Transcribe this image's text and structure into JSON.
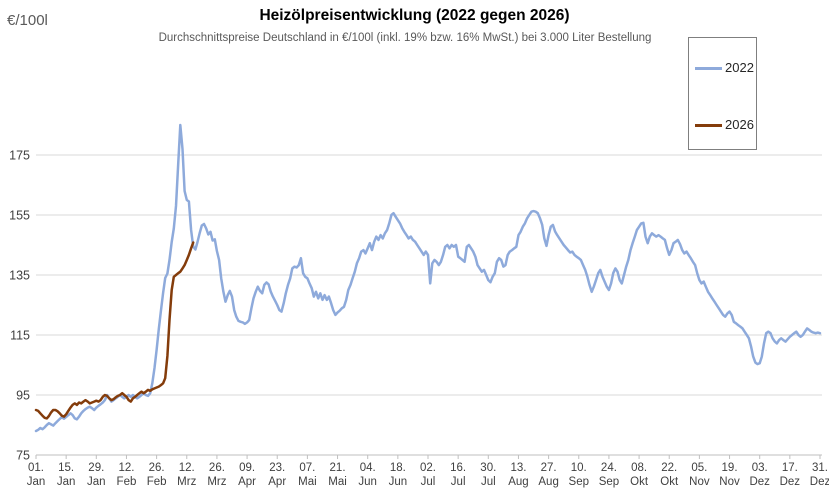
{
  "colors": {
    "grid": "#D9D9D9",
    "axis": "#BFBFBF",
    "tick_label": "#404040",
    "subtitle_text": "#595959",
    "legend_border": "#7F7F7F",
    "series_2022": "#8EAADB",
    "series_2026": "#843C0B"
  },
  "legend": {
    "items": [
      {
        "label": "2022",
        "color": "#8EAADB"
      },
      {
        "label": "2026",
        "color": "#843C0B"
      }
    ]
  },
  "chart_data": {
    "type": "line",
    "title": "Heizölpreisentwicklung (2022 gegen 2026)",
    "subtitle": "Durchschnittspreise Deutschland in €/100l (inkl. 19% bzw. 16% MwSt.) bei 3.000 Liter Bestellung",
    "y_axis_unit": "€/100l",
    "ylim": [
      75,
      190
    ],
    "y_ticks": [
      75,
      95,
      115,
      135,
      155,
      175
    ],
    "grid": "horizontal-only",
    "legend_position": "right-top-box",
    "x_total_days": 365,
    "tick_interval_days": 14,
    "x_tick_labels": [
      [
        "01.",
        "Jan"
      ],
      [
        "15.",
        "Jan"
      ],
      [
        "29.",
        "Jan"
      ],
      [
        "12.",
        "Feb"
      ],
      [
        "26.",
        "Feb"
      ],
      [
        "12.",
        "Mrz"
      ],
      [
        "26.",
        "Mrz"
      ],
      [
        "09.",
        "Apr"
      ],
      [
        "23.",
        "Apr"
      ],
      [
        "07.",
        "Mai"
      ],
      [
        "21.",
        "Mai"
      ],
      [
        "04.",
        "Jun"
      ],
      [
        "18.",
        "Jun"
      ],
      [
        "02.",
        "Jul"
      ],
      [
        "16.",
        "Jul"
      ],
      [
        "30.",
        "Jul"
      ],
      [
        "13.",
        "Aug"
      ],
      [
        "27.",
        "Aug"
      ],
      [
        "10.",
        "Sep"
      ],
      [
        "24.",
        "Sep"
      ],
      [
        "08.",
        "Okt"
      ],
      [
        "22.",
        "Okt"
      ],
      [
        "05.",
        "Nov"
      ],
      [
        "19.",
        "Nov"
      ],
      [
        "03.",
        "Dez"
      ],
      [
        "17.",
        "Dez"
      ],
      [
        "31.",
        "Dez"
      ]
    ],
    "series": [
      {
        "name": "2022",
        "color": "#8EAADB",
        "start_day": 0,
        "values": [
          83.0,
          83.4,
          84.0,
          83.6,
          84.2,
          85.0,
          85.6,
          85.2,
          84.8,
          85.6,
          86.3,
          87.0,
          87.6,
          87.1,
          87.7,
          88.3,
          88.9,
          88.3,
          87.2,
          86.9,
          87.8,
          88.9,
          89.7,
          90.3,
          90.8,
          91.1,
          90.6,
          90.0,
          90.8,
          91.4,
          91.9,
          92.5,
          93.3,
          95.0,
          93.9,
          92.8,
          93.3,
          93.9,
          94.4,
          95.0,
          94.4,
          93.9,
          94.4,
          95.0,
          94.4,
          95.0,
          94.4,
          93.9,
          94.4,
          95.0,
          95.6,
          95.0,
          94.7,
          95.6,
          98.9,
          104.0,
          110.0,
          117.0,
          123.0,
          129.0,
          134.0,
          135.5,
          140.0,
          146.0,
          150.5,
          158.0,
          172.0,
          185.0,
          177.0,
          163.0,
          160.0,
          159.5,
          150.0,
          144.5,
          143.5,
          146.0,
          149.0,
          151.5,
          152.0,
          150.5,
          148.5,
          149.4,
          146.5,
          146.9,
          143.0,
          140.0,
          133.9,
          129.4,
          126.1,
          128.3,
          129.7,
          127.8,
          123.3,
          121.1,
          119.7,
          119.4,
          119.2,
          118.7,
          119.2,
          120.0,
          123.9,
          127.2,
          129.4,
          131.1,
          129.7,
          128.9,
          131.7,
          132.5,
          131.9,
          129.4,
          127.8,
          126.4,
          125.0,
          123.3,
          122.8,
          125.6,
          128.9,
          131.7,
          133.9,
          137.2,
          137.8,
          137.5,
          138.3,
          140.6,
          135.6,
          134.4,
          133.9,
          132.2,
          130.6,
          127.8,
          129.4,
          127.2,
          128.9,
          126.7,
          128.3,
          126.7,
          127.8,
          125.6,
          123.3,
          121.7,
          122.5,
          123.1,
          123.9,
          124.4,
          126.7,
          130.0,
          131.7,
          133.9,
          136.1,
          138.9,
          140.6,
          142.8,
          143.3,
          142.2,
          143.9,
          145.6,
          143.3,
          146.1,
          147.8,
          146.7,
          148.3,
          147.2,
          148.9,
          150.0,
          152.2,
          155.0,
          155.6,
          154.4,
          153.3,
          152.2,
          150.6,
          149.4,
          148.3,
          147.2,
          147.8,
          146.7,
          146.1,
          145.0,
          143.9,
          142.8,
          141.7,
          142.8,
          141.7,
          132.2,
          138.9,
          140.0,
          139.4,
          138.3,
          139.4,
          141.7,
          144.4,
          145.0,
          143.9,
          145.0,
          144.4,
          145.0,
          141.1,
          140.6,
          140.0,
          139.4,
          144.4,
          145.0,
          143.9,
          142.8,
          141.1,
          138.3,
          137.2,
          136.1,
          136.7,
          135.0,
          133.3,
          132.6,
          134.4,
          135.6,
          139.4,
          140.6,
          140.0,
          137.8,
          138.3,
          141.7,
          142.8,
          143.3,
          143.9,
          144.4,
          148.3,
          149.4,
          151.1,
          152.2,
          153.9,
          155.0,
          156.1,
          156.3,
          156.1,
          155.6,
          153.9,
          151.7,
          147.2,
          144.7,
          148.3,
          151.1,
          151.7,
          149.5,
          148.3,
          147.2,
          146.1,
          145.0,
          144.2,
          143.3,
          142.5,
          142.8,
          141.7,
          141.1,
          140.6,
          140.0,
          138.3,
          136.7,
          134.4,
          131.7,
          129.4,
          131.1,
          133.3,
          135.6,
          136.7,
          134.4,
          132.8,
          131.1,
          130.0,
          132.2,
          135.6,
          137.2,
          136.1,
          133.3,
          132.2,
          135.0,
          137.8,
          140.0,
          143.3,
          145.6,
          147.8,
          150.0,
          151.1,
          152.2,
          152.4,
          147.8,
          145.6,
          147.8,
          148.9,
          148.3,
          147.8,
          148.3,
          147.8,
          147.2,
          146.7,
          143.9,
          141.7,
          143.3,
          145.6,
          146.1,
          146.7,
          145.3,
          143.3,
          142.2,
          142.8,
          141.7,
          140.6,
          139.4,
          138.3,
          135.6,
          133.3,
          132.2,
          132.8,
          131.1,
          129.4,
          128.3,
          127.2,
          126.1,
          125.0,
          123.9,
          122.8,
          121.7,
          121.1,
          122.2,
          122.8,
          121.7,
          119.4,
          118.9,
          118.3,
          117.8,
          117.2,
          116.1,
          115.0,
          113.9,
          111.1,
          107.8,
          105.8,
          105.3,
          105.6,
          107.8,
          112.2,
          115.6,
          116.1,
          115.6,
          113.9,
          112.8,
          112.2,
          113.3,
          113.9,
          113.3,
          112.8,
          113.6,
          114.4,
          115.0,
          115.6,
          116.1,
          115.0,
          114.4,
          115.0,
          116.1,
          117.2,
          116.7,
          116.1,
          115.8,
          115.6,
          115.8,
          115.6
        ]
      },
      {
        "name": "2026",
        "color": "#843C0B",
        "start_day": 0,
        "values": [
          90.0,
          89.7,
          88.9,
          88.1,
          87.4,
          87.2,
          88.0,
          89.2,
          90.0,
          90.0,
          89.6,
          88.9,
          88.1,
          87.8,
          88.6,
          89.7,
          90.8,
          91.7,
          92.2,
          91.7,
          92.5,
          92.2,
          92.8,
          93.3,
          92.8,
          92.2,
          92.5,
          92.8,
          93.1,
          92.8,
          93.3,
          94.4,
          95.0,
          94.7,
          93.9,
          93.3,
          93.6,
          94.2,
          94.7,
          95.0,
          95.6,
          95.0,
          94.4,
          93.3,
          92.8,
          93.9,
          94.4,
          95.0,
          95.6,
          96.1,
          95.6,
          96.1,
          96.7,
          96.4,
          96.9,
          97.2,
          97.5,
          97.8,
          98.3,
          98.9,
          100.6,
          108.0,
          120.0,
          130.0,
          134.4,
          135.0,
          135.6,
          136.1,
          137.2,
          138.3,
          140.0,
          141.7,
          143.9,
          145.8
        ]
      }
    ]
  }
}
